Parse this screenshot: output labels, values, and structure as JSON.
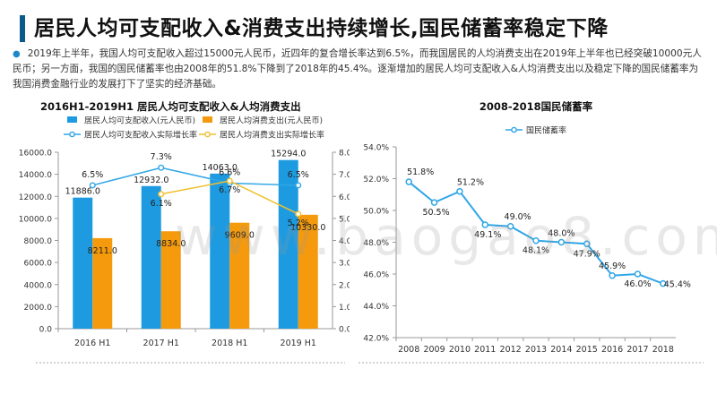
{
  "slide": {
    "title": "居民人均可支配收入&消费支出持续增长,国民储蓄率稳定下降",
    "paragraph": "2019年上半年，我国人均可支配收入超过15000元人民币，近四年的复合增长率达到6.5%，而我国居民的人均消费支出在2019年上半年也已经突破10000元人民币；另一方面，我国的国民储蓄率也由2008年的51.8%下降到了2018年的45.4%。逐渐增加的居民人均可支配收入&人均消费支出以及稳定下降的国民储蓄率为我国消费金融行业的发展打下了坚实的经济基础。",
    "bullet_icon": "dot-bullet-icon",
    "watermark": "www.baogao8.com"
  },
  "chart_data": [
    {
      "type": "bar",
      "title": "2016H1-2019H1 居民人均可支配收入&人均消费支出",
      "categories": [
        "2016 H1",
        "2017 H1",
        "2018 H1",
        "2019 H1"
      ],
      "series": [
        {
          "name": "居民人均可支配收入(元人民币)",
          "kind": "bar",
          "axis": "left",
          "color": "#1e9be0",
          "values": [
            11886.0,
            12932.0,
            14063.0,
            15294.0
          ],
          "labels": [
            "11886.0",
            "12932.0",
            "14063.0",
            "15294.0"
          ]
        },
        {
          "name": "居民人均消费支出(元人民币)",
          "kind": "bar",
          "axis": "left",
          "color": "#f59a0c",
          "values": [
            8211.0,
            8834.0,
            9609.0,
            10330.0
          ],
          "labels": [
            "8211.0",
            "8834.0",
            "9609.0",
            "10330.0"
          ]
        },
        {
          "name": "居民人均可支配收入实际增长率",
          "kind": "line",
          "axis": "right",
          "color": "#2fa6e6",
          "values": [
            6.5,
            7.3,
            6.6,
            6.5
          ],
          "labels": [
            "6.5%",
            "7.3%",
            "6.6%",
            "6.5%"
          ]
        },
        {
          "name": "居民人均消费支出实际增长率",
          "kind": "line",
          "axis": "right",
          "color": "#f0c030",
          "values": [
            null,
            6.1,
            6.7,
            5.2
          ],
          "labels": [
            "",
            "6.1%",
            "6.7%",
            "5.2%"
          ]
        }
      ],
      "y_left": {
        "min": 0,
        "max": 16000,
        "step": 2000,
        "ticks": [
          "0.0",
          "2000.0",
          "4000.0",
          "6000.0",
          "8000.0",
          "10000.0",
          "12000.0",
          "14000.0",
          "16000.0"
        ]
      },
      "y_right": {
        "min": 0,
        "max": 8,
        "step": 1,
        "ticks": [
          "0.0%",
          "1.0%",
          "2.0%",
          "3.0%",
          "4.0%",
          "5.0%",
          "6.0%",
          "7.0%",
          "8.0%"
        ]
      },
      "legend_placement": "top",
      "grid": false
    },
    {
      "type": "line",
      "title": "2008-2018国民储蓄率",
      "x": [
        "2008",
        "2009",
        "2010",
        "2011",
        "2012",
        "2013",
        "2014",
        "2015",
        "2016",
        "2017",
        "2018"
      ],
      "series": [
        {
          "name": "国民储蓄率",
          "color": "#2fa6e6",
          "values": [
            51.8,
            50.5,
            51.2,
            49.1,
            49.0,
            48.1,
            48.0,
            47.9,
            45.9,
            46.0,
            45.4
          ],
          "labels": [
            "51.8%",
            "50.5%",
            "51.2%",
            "49.1%",
            "49.0%",
            "48.1%",
            "48.0%",
            "47.9%",
            "45.9%",
            "46.0%",
            "45.4%"
          ]
        }
      ],
      "y": {
        "min": 42,
        "max": 54,
        "step": 2,
        "ticks": [
          "42.0%",
          "44.0%",
          "46.0%",
          "48.0%",
          "50.0%",
          "52.0%",
          "54.0%"
        ]
      },
      "legend_placement": "top",
      "grid": false
    }
  ]
}
